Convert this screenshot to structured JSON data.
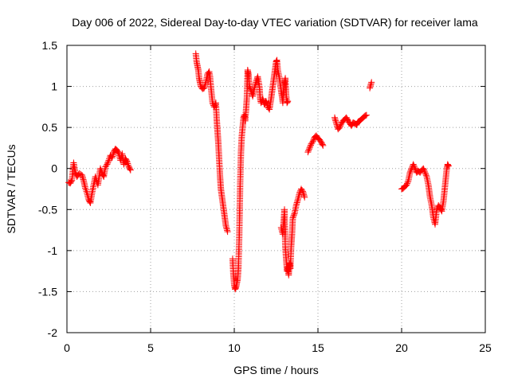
{
  "chart_data": {
    "type": "scatter",
    "title": "Day 006 of 2022, Sidereal Day-to-day VTEC variation (SDTVAR) for receiver lama",
    "xlabel": "GPS time / hours",
    "ylabel": "SDTVAR / TECUs",
    "xlim": [
      0,
      25
    ],
    "ylim": [
      -2,
      1.5
    ],
    "xticks": [
      0,
      5,
      10,
      15,
      20,
      25
    ],
    "yticks": [
      -2,
      -1.5,
      -1,
      -0.5,
      0,
      0.5,
      1,
      1.5
    ],
    "xtick_labels": [
      "0",
      "5",
      "10",
      "15",
      "20",
      "25"
    ],
    "ytick_labels": [
      "-2",
      "-1.5",
      "-1",
      "-0.5",
      "0",
      "0.5",
      "1",
      "1.5"
    ],
    "grid": true,
    "marker": "+",
    "color": "#ff0000",
    "series": [
      {
        "name": "SDTVAR",
        "segments": [
          [
            [
              0.1,
              -0.17
            ],
            [
              0.2,
              -0.18
            ],
            [
              0.3,
              -0.14
            ],
            [
              0.4,
              0.07
            ],
            [
              0.5,
              -0.05
            ],
            [
              0.6,
              -0.1
            ],
            [
              0.75,
              -0.06
            ],
            [
              0.9,
              -0.08
            ],
            [
              1.0,
              -0.15
            ],
            [
              1.1,
              -0.24
            ],
            [
              1.2,
              -0.3
            ],
            [
              1.3,
              -0.38
            ],
            [
              1.4,
              -0.42
            ],
            [
              1.5,
              -0.3
            ],
            [
              1.6,
              -0.2
            ],
            [
              1.7,
              -0.1
            ],
            [
              1.85,
              -0.2
            ],
            [
              2.0,
              0.0
            ],
            [
              2.1,
              -0.06
            ],
            [
              2.2,
              -0.1
            ],
            [
              2.3,
              0.02
            ],
            [
              2.4,
              0.05
            ],
            [
              2.5,
              0.1
            ],
            [
              2.6,
              0.16
            ],
            [
              2.7,
              0.13
            ],
            [
              2.8,
              0.2
            ],
            [
              2.9,
              0.24
            ],
            [
              3.0,
              0.22
            ],
            [
              3.1,
              0.18
            ],
            [
              3.2,
              0.1
            ],
            [
              3.3,
              0.18
            ],
            [
              3.4,
              0.05
            ],
            [
              3.5,
              0.12
            ],
            [
              3.6,
              0.08
            ],
            [
              3.7,
              0.02
            ],
            [
              3.8,
              -0.02
            ]
          ],
          [
            [
              7.7,
              1.4
            ],
            [
              7.75,
              1.3
            ],
            [
              7.8,
              1.25
            ],
            [
              7.85,
              1.2
            ],
            [
              7.9,
              1.1
            ],
            [
              7.95,
              1.05
            ],
            [
              8.0,
              1.0
            ],
            [
              8.1,
              0.97
            ],
            [
              8.2,
              0.98
            ],
            [
              8.3,
              1.05
            ],
            [
              8.4,
              1.15
            ],
            [
              8.5,
              1.18
            ],
            [
              8.55,
              1.12
            ],
            [
              8.6,
              1.0
            ],
            [
              8.65,
              0.9
            ],
            [
              8.7,
              0.8
            ],
            [
              8.8,
              0.75
            ],
            [
              8.9,
              0.8
            ],
            [
              8.95,
              0.6
            ],
            [
              9.0,
              0.45
            ],
            [
              9.05,
              0.3
            ],
            [
              9.1,
              0.1
            ],
            [
              9.15,
              -0.1
            ],
            [
              9.2,
              -0.25
            ],
            [
              9.3,
              -0.4
            ],
            [
              9.4,
              -0.55
            ],
            [
              9.5,
              -0.7
            ],
            [
              9.6,
              -0.77
            ]
          ],
          [
            [
              9.9,
              -1.1
            ],
            [
              9.95,
              -1.3
            ],
            [
              10.0,
              -1.42
            ],
            [
              10.05,
              -1.47
            ],
            [
              10.1,
              -1.45
            ],
            [
              10.15,
              -1.4
            ],
            [
              10.2,
              -1.35
            ],
            [
              10.25,
              -1.2
            ],
            [
              10.3,
              -0.8
            ],
            [
              10.35,
              -0.2
            ],
            [
              10.4,
              0.2
            ],
            [
              10.45,
              0.4
            ],
            [
              10.5,
              0.5
            ],
            [
              10.55,
              0.62
            ],
            [
              10.6,
              0.65
            ],
            [
              10.65,
              0.58
            ],
            [
              10.7,
              0.7
            ],
            [
              10.75,
              0.85
            ],
            [
              10.8,
              1.2
            ],
            [
              10.85,
              1.15
            ],
            [
              10.9,
              1.0
            ],
            [
              11.0,
              0.95
            ],
            [
              11.1,
              0.88
            ],
            [
              11.2,
              0.98
            ],
            [
              11.3,
              1.05
            ],
            [
              11.4,
              1.12
            ],
            [
              11.5,
              1.0
            ],
            [
              11.55,
              0.85
            ],
            [
              11.6,
              0.8
            ],
            [
              11.7,
              0.85
            ],
            [
              11.8,
              0.78
            ],
            [
              11.9,
              0.82
            ],
            [
              12.0,
              0.75
            ],
            [
              12.1,
              0.72
            ],
            [
              12.2,
              0.85
            ],
            [
              12.3,
              1.0
            ],
            [
              12.4,
              1.15
            ],
            [
              12.5,
              1.3
            ],
            [
              12.55,
              1.32
            ],
            [
              12.6,
              1.2
            ],
            [
              12.7,
              1.1
            ],
            [
              12.8,
              0.95
            ],
            [
              12.85,
              0.88
            ],
            [
              12.9,
              0.8
            ],
            [
              13.0,
              1.05
            ],
            [
              13.05,
              1.1
            ],
            [
              13.1,
              0.9
            ],
            [
              13.15,
              0.8
            ],
            [
              13.2,
              0.82
            ]
          ],
          [
            [
              12.8,
              -0.72
            ],
            [
              12.9,
              -0.8
            ],
            [
              13.0,
              -0.5
            ],
            [
              13.05,
              -0.95
            ],
            [
              13.1,
              -1.1
            ],
            [
              13.15,
              -1.25
            ],
            [
              13.2,
              -1.2
            ],
            [
              13.25,
              -1.3
            ],
            [
              13.3,
              -1.15
            ],
            [
              13.35,
              -1.22
            ],
            [
              13.4,
              -0.95
            ],
            [
              13.45,
              -0.8
            ],
            [
              13.5,
              -0.6
            ],
            [
              13.6,
              -0.55
            ],
            [
              13.7,
              -0.45
            ],
            [
              13.8,
              -0.38
            ],
            [
              13.9,
              -0.3
            ],
            [
              14.0,
              -0.25
            ],
            [
              14.1,
              -0.28
            ],
            [
              14.2,
              -0.35
            ]
          ],
          [
            [
              14.4,
              0.2
            ],
            [
              14.5,
              0.25
            ],
            [
              14.6,
              0.3
            ],
            [
              14.7,
              0.33
            ],
            [
              14.8,
              0.38
            ],
            [
              14.9,
              0.4
            ],
            [
              15.0,
              0.37
            ],
            [
              15.1,
              0.35
            ],
            [
              15.2,
              0.32
            ],
            [
              15.3,
              0.28
            ]
          ],
          [
            [
              16.0,
              0.62
            ],
            [
              16.1,
              0.55
            ],
            [
              16.2,
              0.48
            ],
            [
              16.3,
              0.5
            ],
            [
              16.4,
              0.55
            ],
            [
              16.5,
              0.58
            ],
            [
              16.6,
              0.6
            ],
            [
              16.7,
              0.62
            ],
            [
              16.8,
              0.58
            ],
            [
              16.9,
              0.55
            ],
            [
              17.0,
              0.52
            ],
            [
              17.1,
              0.56
            ],
            [
              17.2,
              0.55
            ],
            [
              17.3,
              0.53
            ],
            [
              17.4,
              0.57
            ],
            [
              17.5,
              0.58
            ],
            [
              17.6,
              0.6
            ],
            [
              17.7,
              0.62
            ],
            [
              17.8,
              0.64
            ],
            [
              17.9,
              0.65
            ]
          ],
          [
            [
              18.1,
              0.98
            ],
            [
              18.2,
              1.05
            ]
          ],
          [
            [
              20.0,
              -0.25
            ],
            [
              20.1,
              -0.24
            ],
            [
              20.2,
              -0.22
            ],
            [
              20.3,
              -0.2
            ],
            [
              20.4,
              -0.15
            ],
            [
              20.5,
              -0.05
            ],
            [
              20.6,
              0.0
            ],
            [
              20.7,
              0.05
            ],
            [
              20.8,
              0.0
            ],
            [
              20.9,
              -0.05
            ],
            [
              21.0,
              -0.03
            ],
            [
              21.1,
              -0.05
            ],
            [
              21.2,
              -0.02
            ],
            [
              21.3,
              0.0
            ],
            [
              21.4,
              -0.05
            ],
            [
              21.5,
              -0.1
            ],
            [
              21.6,
              -0.2
            ],
            [
              21.7,
              -0.35
            ],
            [
              21.8,
              -0.45
            ],
            [
              21.9,
              -0.6
            ],
            [
              22.0,
              -0.68
            ],
            [
              22.1,
              -0.5
            ],
            [
              22.2,
              -0.45
            ],
            [
              22.3,
              -0.48
            ],
            [
              22.4,
              -0.52
            ],
            [
              22.5,
              -0.4
            ],
            [
              22.6,
              -0.2
            ],
            [
              22.7,
              0.0
            ],
            [
              22.75,
              0.05
            ],
            [
              22.8,
              0.03
            ]
          ]
        ]
      }
    ]
  }
}
